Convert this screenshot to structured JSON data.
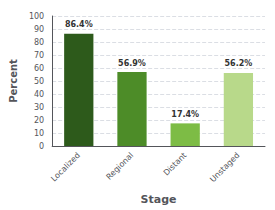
{
  "chart_data": {
    "type": "bar",
    "xlabel": "Stage",
    "ylabel": "Percent",
    "categories": [
      "Localized",
      "Regional",
      "Distant",
      "Unstaged"
    ],
    "values": [
      86.4,
      56.9,
      17.4,
      56.2
    ],
    "value_labels": [
      "86.4%",
      "56.9%",
      "17.4%",
      "56.2%"
    ],
    "colors": [
      "#2d5a1b",
      "#4d8c28",
      "#7dbc45",
      "#b8d98a"
    ],
    "ylim": [
      0,
      100
    ],
    "yticks": [
      0,
      10,
      20,
      30,
      40,
      50,
      60,
      70,
      80,
      90,
      100
    ],
    "grid": true,
    "data_labels": true
  }
}
